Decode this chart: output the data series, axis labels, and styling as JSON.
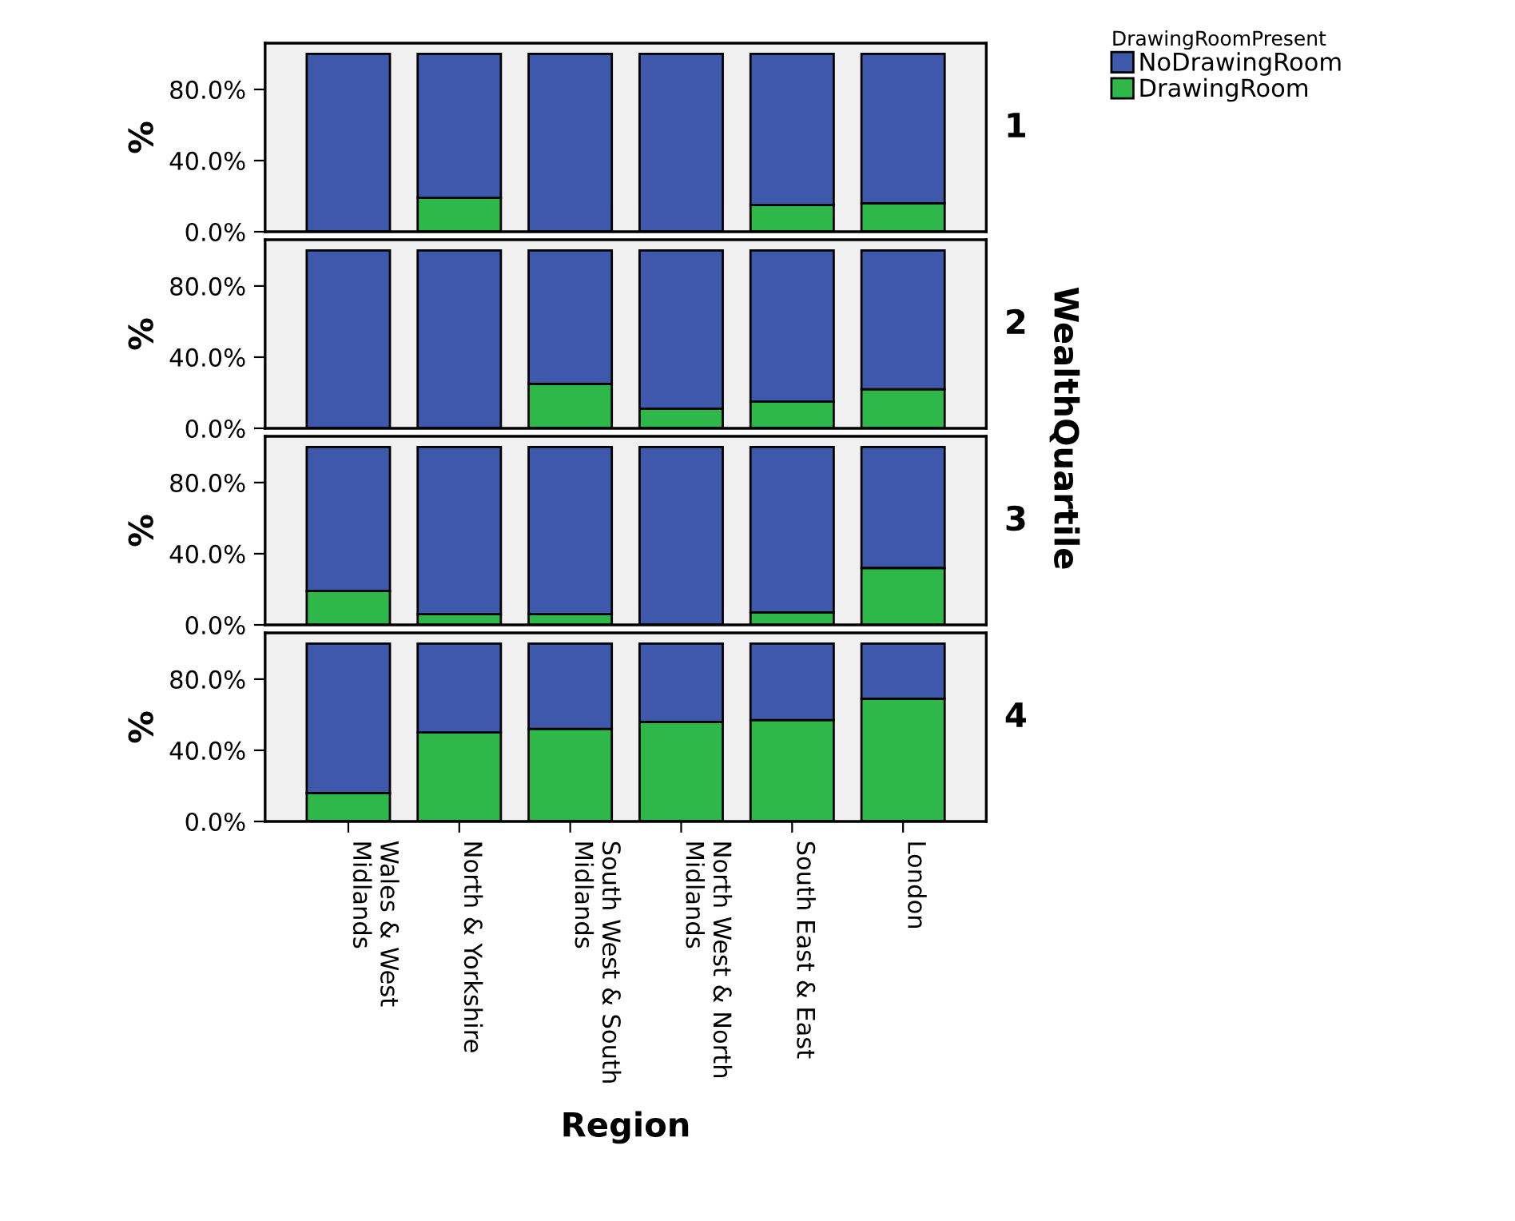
{
  "chart_data": [
    {
      "type": "bar",
      "stacked": true,
      "ylabel": "%",
      "y2label": "1",
      "legend_title": "DrawingRoomPresent",
      "legend": "right",
      "tick_labels": "y",
      "categories": [
        null,
        null,
        null,
        null,
        null,
        null
      ],
      "series": [
        {
          "name": "DrawingRoom",
          "color": "#2eb84a",
          "values": [
            0,
            19,
            0,
            0,
            15,
            16
          ]
        },
        {
          "name": "NoDrawingRoom",
          "color": "#3e58ac",
          "values": [
            100,
            81,
            100,
            100,
            85,
            84
          ]
        }
      ],
      "ylim": [
        0,
        106
      ],
      "yticks": [
        {
          "value": 0,
          "label": "0.0%"
        },
        {
          "value": 40,
          "label": "40.0%"
        },
        {
          "value": 80,
          "label": "80.0%"
        }
      ]
    },
    {
      "type": "bar",
      "stacked": true,
      "ylabel": "%",
      "y2label": "2",
      "tick_labels": "y",
      "annotations": [
        "WealthQuartile"
      ],
      "categories": [
        null,
        null,
        null,
        null,
        null,
        null
      ],
      "series": [
        {
          "color": "#2eb84a",
          "values": [
            0,
            0,
            25,
            11,
            15,
            22
          ]
        },
        {
          "color": "#3e58ac",
          "values": [
            100,
            100,
            75,
            89,
            85,
            78
          ]
        }
      ],
      "ylim": [
        0,
        106
      ],
      "yticks": [
        {
          "value": 0,
          "label": "0.0%"
        },
        {
          "value": 40,
          "label": "40.0%"
        },
        {
          "value": 80,
          "label": "80.0%"
        }
      ]
    },
    {
      "type": "bar",
      "stacked": true,
      "ylabel": "%",
      "y2label": "3",
      "tick_labels": "y",
      "categories": [
        null,
        null,
        null,
        null,
        null,
        null
      ],
      "series": [
        {
          "color": "#2eb84a",
          "values": [
            19,
            6,
            6,
            0,
            7,
            32
          ]
        },
        {
          "color": "#3e58ac",
          "values": [
            81,
            94,
            94,
            100,
            93,
            68
          ]
        }
      ],
      "ylim": [
        0,
        106
      ],
      "yticks": [
        {
          "value": 0,
          "label": "0.0%"
        },
        {
          "value": 40,
          "label": "40.0%"
        },
        {
          "value": 80,
          "label": "80.0%"
        }
      ]
    },
    {
      "type": "bar",
      "stacked": true,
      "ylabel": "%",
      "y2label": "4",
      "xlabel": "Region",
      "categories": [
        "Wales & West Midlands",
        "North & Yorkshire",
        "South West & South Midlands",
        "North West & North Midlands",
        "South East & East",
        "London"
      ],
      "series": [
        {
          "color": "#2eb84a",
          "values": [
            16,
            50,
            52,
            56,
            57,
            69
          ]
        },
        {
          "color": "#3e58ac",
          "values": [
            84,
            50,
            48,
            44,
            43,
            31
          ]
        }
      ],
      "ylim": [
        0,
        106
      ],
      "yticks": [
        {
          "value": 0,
          "label": "0.0%"
        },
        {
          "value": 40,
          "label": "40.0%"
        },
        {
          "value": 80,
          "label": "80.0%"
        }
      ]
    }
  ]
}
